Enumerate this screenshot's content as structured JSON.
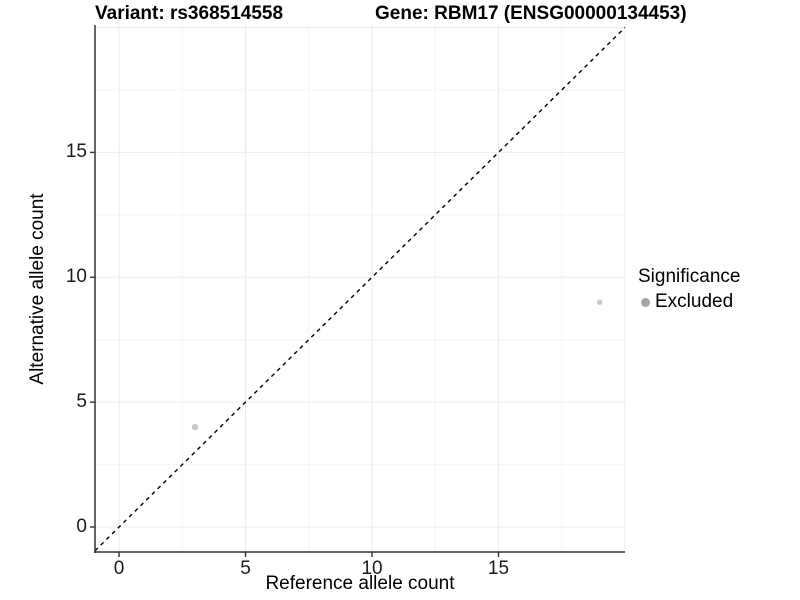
{
  "chart_data": {
    "type": "scatter",
    "title_left": "Variant: rs368514558",
    "title_right": "Gene: RBM17 (ENSG00000134453)",
    "xlabel": "Reference allele count",
    "ylabel": "Alternative allele count",
    "xlim": [
      -0.95,
      20.0
    ],
    "ylim": [
      -1.0,
      20.1
    ],
    "x_ticks": [
      "0",
      "5",
      "10",
      "15"
    ],
    "x_tick_values": [
      0,
      5,
      10,
      15
    ],
    "y_ticks": [
      "0",
      "5",
      "10",
      "15"
    ],
    "y_tick_values": [
      0,
      5,
      10,
      15
    ],
    "grid_major": [
      0,
      5,
      10,
      15,
      20
    ],
    "grid_minor": [
      2.5,
      7.5,
      12.5,
      17.5
    ],
    "grid_on": true,
    "points": [
      {
        "x": 3,
        "y": 4,
        "r": 3.2
      },
      {
        "x": 19,
        "y": 9,
        "r": 2.7
      }
    ],
    "point_color": "#c8c8c8",
    "identity_line": {
      "style": "dashed",
      "from": -0.95,
      "to": 20.0,
      "color": "#000000"
    },
    "grid_major_color": "#ebebeb",
    "grid_minor_color": "#f4f4f4",
    "axis_line_color": "#333333",
    "legend": {
      "title": "Significance",
      "position": "right",
      "entries": [
        {
          "label": "Excluded",
          "color": "#a6a6a6"
        }
      ]
    }
  }
}
